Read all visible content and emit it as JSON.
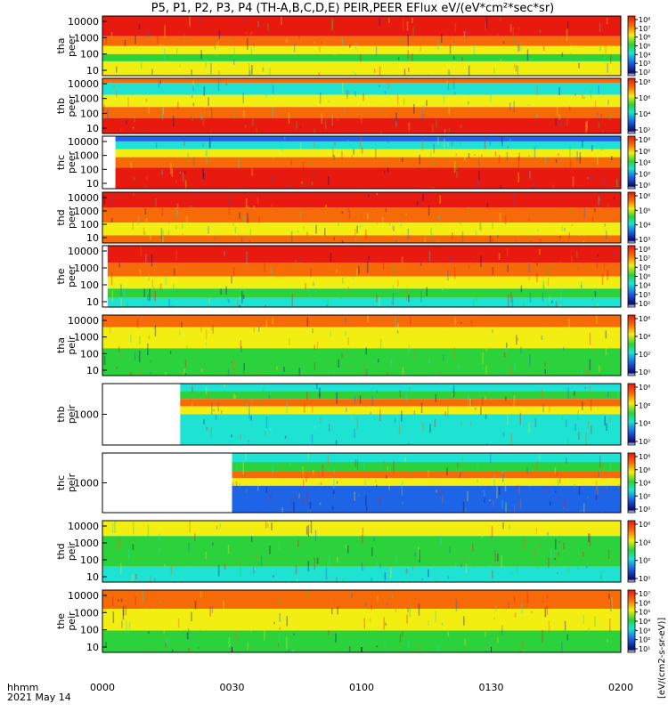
{
  "title": "P5, P1, P2, P3, P4 (TH-A,B,C,D,E) PEIR,PEER EFlux eV/(eV*cm²*sec*sr)",
  "footer": {
    "time_label": "hhmm",
    "date_label": "2021 May 14"
  },
  "x_ticks": [
    "0000",
    "0030",
    "0100",
    "0130",
    "0200"
  ],
  "colorbar_label": "[eV/(cm2-s-sr-eV)]",
  "colors": {
    "red": "#e81a10",
    "orange": "#f66a08",
    "yellow": "#f2ee12",
    "green": "#2cd23c",
    "cyan": "#1ee2d2",
    "blue": "#1e64e6",
    "navy": "#0a0a6e"
  },
  "chart_data": [
    {
      "type": "heatmap",
      "ylabel": [
        "tha",
        "peer"
      ],
      "y_ticks": [
        "10000",
        "1000",
        "100",
        "10"
      ],
      "cbar_ticks": [
        "10⁸",
        "10⁷",
        "10⁶",
        "10⁵",
        "10⁴",
        "10³",
        "10²"
      ],
      "scale": "log",
      "bands": [
        [
          "red",
          0.34
        ],
        [
          "orange",
          0.16
        ],
        [
          "yellow",
          0.14
        ],
        [
          "green",
          0.12
        ],
        [
          "yellow",
          0.24
        ]
      ]
    },
    {
      "type": "heatmap",
      "ylabel": [
        "thb",
        "peer"
      ],
      "y_ticks": [
        "10000",
        "1000",
        "100",
        "10"
      ],
      "cbar_ticks": [
        "10⁸",
        "10⁶",
        "10⁴",
        "10²"
      ],
      "scale": "log",
      "bands": [
        [
          "orange",
          0.08
        ],
        [
          "cyan",
          0.22
        ],
        [
          "yellow",
          0.22
        ],
        [
          "orange",
          0.2
        ],
        [
          "red",
          0.28
        ]
      ]
    },
    {
      "type": "heatmap",
      "ylabel": [
        "thc",
        "peer"
      ],
      "y_ticks": [
        "10000",
        "1000",
        "100",
        "10"
      ],
      "cbar_ticks": [
        "10⁸",
        "10⁶",
        "10⁴",
        "10²",
        "10⁰"
      ],
      "scale": "log",
      "gap_end_fraction": 0.025,
      "bands": [
        [
          "blue",
          0.1
        ],
        [
          "cyan",
          0.15
        ],
        [
          "yellow",
          0.15
        ],
        [
          "orange",
          0.2
        ],
        [
          "red",
          0.4
        ]
      ]
    },
    {
      "type": "heatmap",
      "ylabel": [
        "thd",
        "peer"
      ],
      "y_ticks": [
        "10000",
        "1000",
        "100",
        "10"
      ],
      "cbar_ticks": [
        "10⁶",
        "10⁵",
        "10⁴",
        "10³"
      ],
      "scale": "log",
      "bands": [
        [
          "red",
          0.3
        ],
        [
          "orange",
          0.3
        ],
        [
          "yellow",
          0.25
        ],
        [
          "orange",
          0.15
        ]
      ]
    },
    {
      "type": "heatmap",
      "ylabel": [
        "the",
        "peer"
      ],
      "y_ticks": [
        "10000",
        "1000",
        "100",
        "10"
      ],
      "cbar_ticks": [
        "10⁸",
        "10⁷",
        "10⁶",
        "10⁵",
        "10⁴",
        "10³",
        "10²"
      ],
      "scale": "log",
      "gap_end_fraction": 0.01,
      "bands": [
        [
          "red",
          0.28
        ],
        [
          "orange",
          0.22
        ],
        [
          "yellow",
          0.2
        ],
        [
          "green",
          0.15
        ],
        [
          "cyan",
          0.15
        ]
      ]
    },
    {
      "type": "heatmap",
      "ylabel": [
        "tha",
        "peir"
      ],
      "y_ticks": [
        "10000",
        "1000",
        "100",
        "10"
      ],
      "cbar_ticks": [
        "10⁶",
        "10⁴",
        "10²",
        "10⁰"
      ],
      "scale": "log",
      "bands": [
        [
          "orange",
          0.2
        ],
        [
          "yellow",
          0.35
        ],
        [
          "green",
          0.45
        ]
      ]
    },
    {
      "type": "heatmap",
      "ylabel": [
        "thb",
        "peir"
      ],
      "y_ticks": [
        "1000"
      ],
      "cbar_ticks": [
        "10⁸",
        "10⁶",
        "10⁴",
        "10²"
      ],
      "scale": "log",
      "gap_end_fraction": 0.15,
      "bands": [
        [
          "cyan",
          0.12
        ],
        [
          "green",
          0.13
        ],
        [
          "orange",
          0.12
        ],
        [
          "yellow",
          0.13
        ],
        [
          "cyan",
          0.5
        ]
      ]
    },
    {
      "type": "heatmap",
      "ylabel": [
        "thc",
        "peir"
      ],
      "y_ticks": [
        "1000"
      ],
      "cbar_ticks": [
        "10⁸",
        "10⁶",
        "10⁴",
        "10²",
        "10⁰"
      ],
      "scale": "log",
      "gap_end_fraction": 0.25,
      "bands": [
        [
          "cyan",
          0.15
        ],
        [
          "green",
          0.15
        ],
        [
          "orange",
          0.12
        ],
        [
          "yellow",
          0.13
        ],
        [
          "blue",
          0.45
        ]
      ]
    },
    {
      "type": "heatmap",
      "ylabel": [
        "thd",
        "peir"
      ],
      "y_ticks": [
        "10000",
        "1000",
        "100",
        "10"
      ],
      "cbar_ticks": [
        "10⁶",
        "10⁴",
        "10²",
        "10⁰"
      ],
      "scale": "log",
      "bands": [
        [
          "yellow",
          0.25
        ],
        [
          "green",
          0.5
        ],
        [
          "cyan",
          0.25
        ]
      ]
    },
    {
      "type": "heatmap",
      "ylabel": [
        "the",
        "peir"
      ],
      "y_ticks": [
        "10000",
        "1000",
        "100",
        "10"
      ],
      "cbar_ticks": [
        "10⁷",
        "10⁶",
        "10⁵",
        "10⁴",
        "10³",
        "10²",
        "10¹"
      ],
      "scale": "log",
      "bands": [
        [
          "orange",
          0.3
        ],
        [
          "yellow",
          0.35
        ],
        [
          "green",
          0.35
        ]
      ]
    }
  ]
}
